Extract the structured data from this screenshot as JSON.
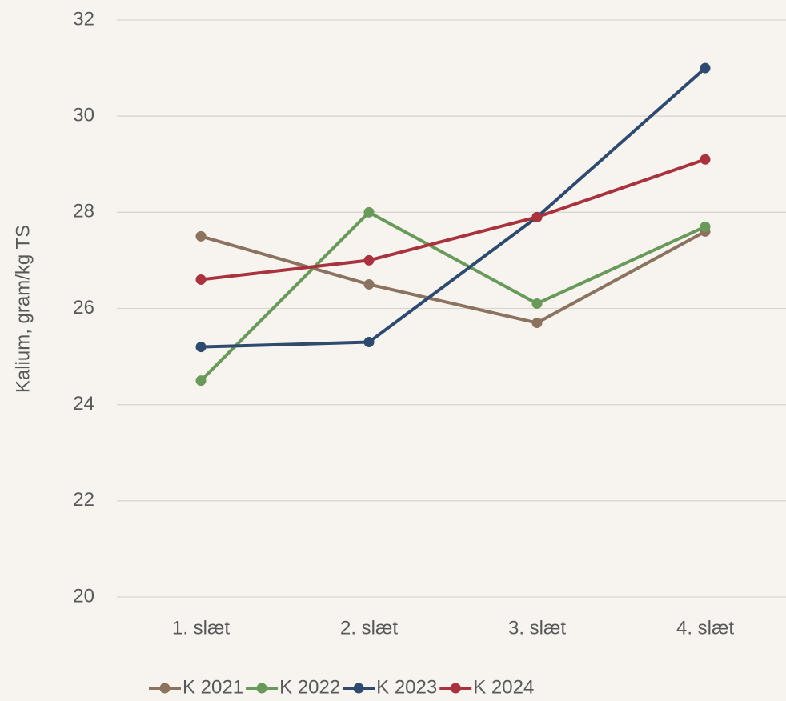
{
  "chart_data": {
    "type": "line",
    "y_label": "Kalium,  gram/kg TS",
    "categories": [
      "1. slæt",
      "2. slæt",
      "3. slæt",
      "4. slæt"
    ],
    "series": [
      {
        "name": "K 2021",
        "color": "#8b7360",
        "values": [
          27.5,
          26.5,
          25.7,
          27.6
        ]
      },
      {
        "name": "K 2022",
        "color": "#6a9a5b",
        "values": [
          24.5,
          28.0,
          26.1,
          27.7
        ]
      },
      {
        "name": "K 2023",
        "color": "#2e4a6e",
        "values": [
          25.2,
          25.3,
          27.9,
          31.0
        ]
      },
      {
        "name": "K 2024",
        "color": "#a8323e",
        "values": [
          26.6,
          27.0,
          27.9,
          29.1
        ]
      }
    ],
    "ylim": [
      20,
      32
    ],
    "yticks": [
      20,
      22,
      24,
      26,
      28,
      30,
      32
    ],
    "grid": true,
    "legend": "bottom"
  }
}
